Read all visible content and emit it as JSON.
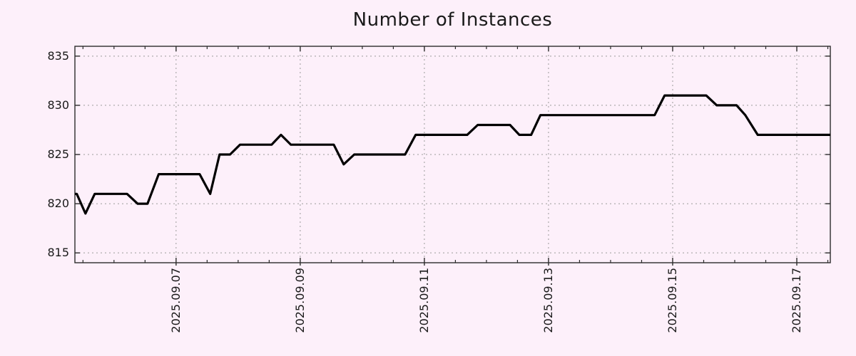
{
  "title": "Number of Instances",
  "colors": {
    "background": "#fdf0fa",
    "line": "#000000",
    "grid": "#9b9b9b",
    "border": "#2b2b2b",
    "text": "#1a1a1a"
  },
  "chart_data": {
    "type": "line",
    "title": "Number of Instances",
    "xlabel": "",
    "ylabel": "",
    "legend": false,
    "grid": true,
    "x_unit": "date, fractional day of September 2025",
    "xlim": [
      5.37,
      17.54
    ],
    "ylim": [
      814,
      836
    ],
    "x_major_ticks": [
      {
        "d": 7,
        "label": "2025.09.07"
      },
      {
        "d": 9,
        "label": "2025.09.09"
      },
      {
        "d": 11,
        "label": "2025.09.11"
      },
      {
        "d": 13,
        "label": "2025.09.13"
      },
      {
        "d": 15,
        "label": "2025.09.15"
      },
      {
        "d": 17,
        "label": "2025.09.17"
      }
    ],
    "x_minor_tick_interval": 0.5,
    "y_ticks": [
      815,
      820,
      825,
      830,
      835
    ],
    "series": [
      {
        "name": "instances",
        "points": [
          [
            5.37,
            821
          ],
          [
            5.4,
            821
          ],
          [
            5.54,
            819
          ],
          [
            5.69,
            821
          ],
          [
            6.21,
            821
          ],
          [
            6.38,
            820
          ],
          [
            6.54,
            820
          ],
          [
            6.72,
            823
          ],
          [
            7.38,
            823
          ],
          [
            7.55,
            821
          ],
          [
            7.7,
            825
          ],
          [
            7.87,
            825
          ],
          [
            8.03,
            826
          ],
          [
            8.54,
            826
          ],
          [
            8.69,
            827
          ],
          [
            8.85,
            826
          ],
          [
            9.54,
            826
          ],
          [
            9.7,
            824
          ],
          [
            9.87,
            825
          ],
          [
            10.69,
            825
          ],
          [
            10.86,
            827
          ],
          [
            11.69,
            827
          ],
          [
            11.86,
            828
          ],
          [
            12.38,
            828
          ],
          [
            12.53,
            827
          ],
          [
            12.72,
            827
          ],
          [
            12.87,
            829
          ],
          [
            14.71,
            829
          ],
          [
            14.87,
            831
          ],
          [
            15.54,
            831
          ],
          [
            15.71,
            830
          ],
          [
            16.03,
            830
          ],
          [
            16.17,
            829
          ],
          [
            16.37,
            827
          ],
          [
            17.54,
            827
          ]
        ]
      }
    ]
  }
}
